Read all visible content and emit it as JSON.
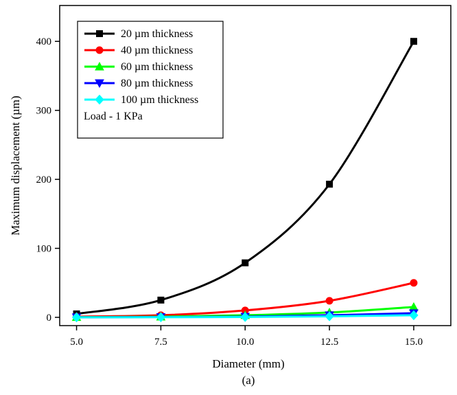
{
  "chart_data": {
    "type": "line",
    "title": "",
    "caption": "(a)",
    "xlabel": "Diameter (mm)",
    "ylabel": "Maximum displacement (µm)",
    "xlim": [
      4.5,
      16.1
    ],
    "ylim": [
      -12,
      452
    ],
    "x": [
      5.0,
      7.5,
      10.0,
      12.5,
      15.0
    ],
    "x_tick_labels": [
      "5.0",
      "7.5",
      "10.0",
      "12.5",
      "15.0"
    ],
    "y_ticks": [
      0,
      100,
      200,
      300,
      400
    ],
    "y_tick_labels": [
      "0",
      "100",
      "200",
      "300",
      "400"
    ],
    "grid": false,
    "legend_position": "top-left",
    "annotation": "Load - 1 KPa",
    "series": [
      {
        "name": "20 µm thickness",
        "color": "#000000",
        "marker": "square",
        "values": [
          5,
          25,
          79,
          193,
          400
        ]
      },
      {
        "name": "40 µm thickness",
        "color": "#ff0000",
        "marker": "circle",
        "values": [
          1,
          3,
          10,
          24,
          50
        ]
      },
      {
        "name": "60 µm thickness",
        "color": "#00ff00",
        "marker": "triangle-up",
        "values": [
          0.3,
          1,
          3,
          7,
          15
        ]
      },
      {
        "name": "80 µm thickness",
        "color": "#0000ff",
        "marker": "triangle-down",
        "values": [
          0.1,
          0.4,
          1,
          3,
          6
        ]
      },
      {
        "name": "100 µm thickness",
        "color": "#00ffff",
        "marker": "diamond",
        "values": [
          0.05,
          0.2,
          0.5,
          1.5,
          3
        ]
      }
    ]
  }
}
